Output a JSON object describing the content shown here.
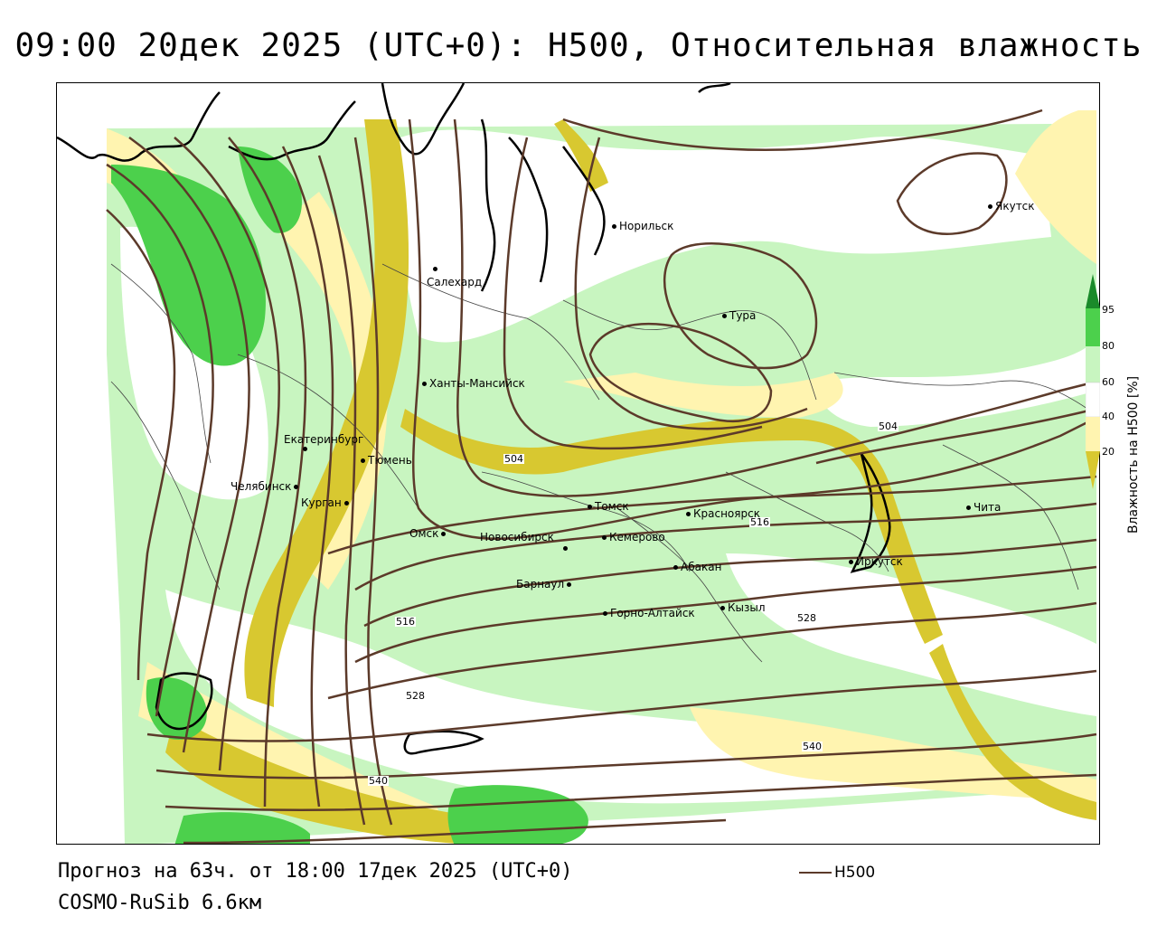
{
  "title": "09:00 20дек 2025 (UTC+0): H500, Относительная влажность",
  "footer": {
    "forecast": "Прогноз на 63ч. от 18:00 17дек 2025 (UTC+0)",
    "model": "COSMO-RuSib 6.6км",
    "legend_h500": "H500"
  },
  "colorbar": {
    "title": "Влажность на H500 [%]",
    "ticks": [
      "95",
      "80",
      "60",
      "40",
      "20"
    ],
    "colors": {
      "c95": "#1a8a2a",
      "c80": "#4cd04c",
      "c60": "#c8f5c0",
      "c40": "#ffffff",
      "c30": "#fff4b0",
      "c20": "#d8c830"
    }
  },
  "contour_color": "#5c3a2a",
  "contour_labels": [
    "504",
    "504",
    "516",
    "516",
    "528",
    "528",
    "540",
    "540"
  ],
  "cities": [
    "Норильск",
    "Якутск",
    "Салехард",
    "Тура",
    "Ханты-Мансийск",
    "Екатеринбург",
    "Тюмень",
    "Челябинск",
    "Курган",
    "Томск",
    "Красноярск",
    "Омск",
    "Новосибирск",
    "Кемерово",
    "Абакан",
    "Иркутск",
    "Чита",
    "Барнаул",
    "Горно-Алтайск",
    "Кызыл"
  ]
}
